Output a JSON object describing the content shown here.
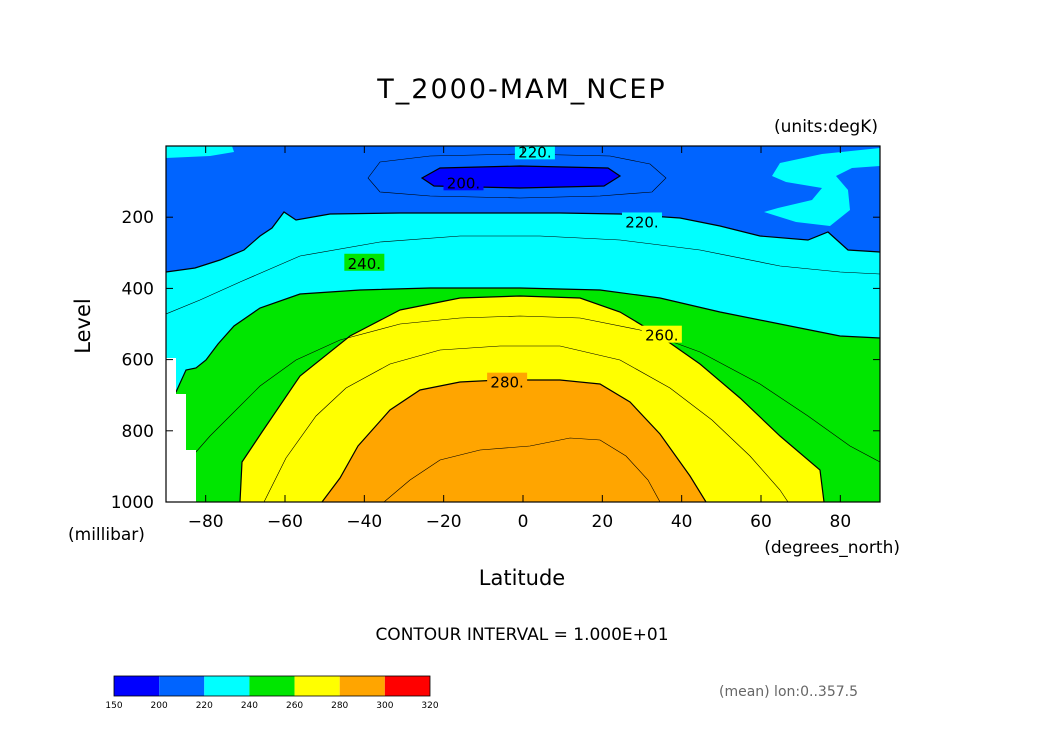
{
  "chart_data": {
    "type": "contour",
    "title": "T_2000-MAM_NCEP",
    "units": "(units:degK)",
    "xlabel": "Latitude",
    "xunits": "(degrees_north)",
    "ylabel": "Level",
    "yunits": "(millibar)",
    "xlim": [
      -90,
      90
    ],
    "ylim": [
      1000,
      0
    ],
    "y_inverted": true,
    "xticks": [
      -80,
      -60,
      -40,
      -20,
      0,
      20,
      40,
      60,
      80
    ],
    "yticks": [
      200,
      400,
      600,
      800,
      1000
    ],
    "contour_interval_text": "CONTOUR INTERVAL = 1.000E+01",
    "mean_note": "(mean) lon:0..357.5",
    "contour_labels": [
      {
        "text": "220.",
        "lat": 3,
        "level": 15
      },
      {
        "text": "200.",
        "lat": -15,
        "level": 102
      },
      {
        "text": "220.",
        "lat": 30,
        "level": 212
      },
      {
        "text": "240.",
        "lat": -40,
        "level": 328
      },
      {
        "text": "260.",
        "lat": 35,
        "level": 530
      },
      {
        "text": "280.",
        "lat": -4,
        "level": 662
      }
    ],
    "colorbar": {
      "ticks": [
        "150",
        "200",
        "220",
        "240",
        "260",
        "280",
        "300",
        "320"
      ],
      "colors": [
        "#0000ff",
        "#0064ff",
        "#00ffff",
        "#00e600",
        "#ffff00",
        "#ffa500",
        "#ff0000"
      ]
    },
    "field_colors": {
      "lt200": "#0000ff",
      "200_220": "#0064ff",
      "220_240": "#00ffff",
      "240_260": "#00e600",
      "260_280": "#ffff00",
      "280_300": "#ffa500"
    }
  }
}
